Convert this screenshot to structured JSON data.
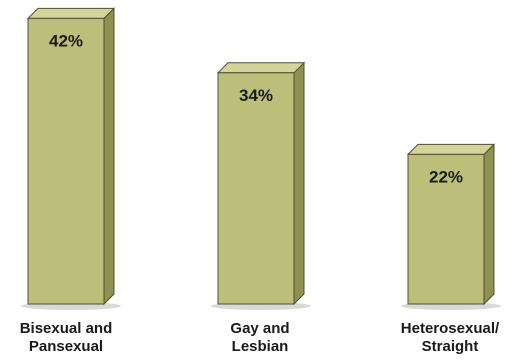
{
  "chart_data": {
    "type": "bar",
    "categories": [
      [
        "Bisexual and",
        "Pansexual"
      ],
      [
        "Gay and",
        "Lesbian"
      ],
      [
        "Heterosexual/",
        "Straight"
      ]
    ],
    "values": [
      42,
      34,
      22
    ],
    "data_labels": [
      "42%",
      "34%",
      "22%"
    ],
    "style": "3d",
    "colors": {
      "front": "#bcbf7a",
      "side": "#8e9152",
      "top": "#d2d49a",
      "edge": "#4e5030",
      "shadow": "#d9d9d9"
    }
  }
}
